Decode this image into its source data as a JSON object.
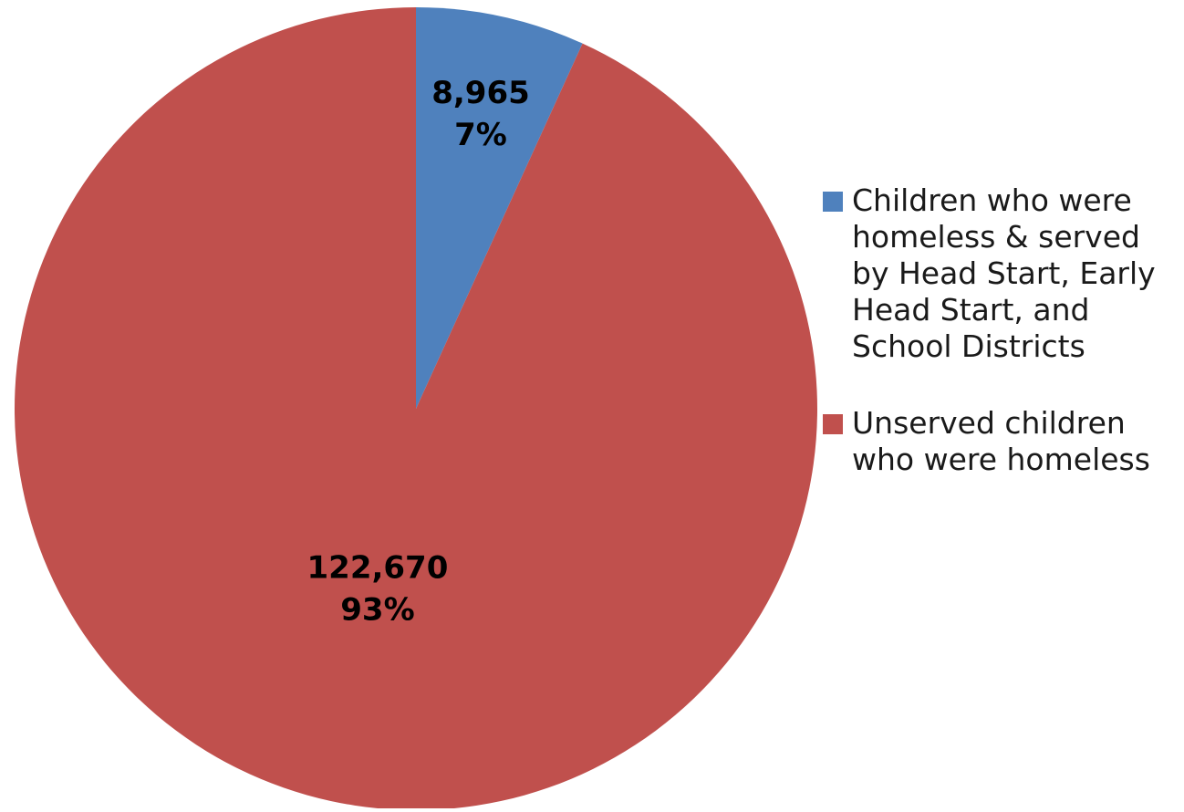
{
  "chart_data": {
    "type": "pie",
    "title": "",
    "slices": [
      {
        "name": "Children who were\nhomeless & served\nby Head Start, Early\nHead Start, and\nSchool Districts",
        "value": 8965,
        "value_label": "8,965",
        "percent_label": "7%",
        "color": "#4F81BD"
      },
      {
        "name": "Unserved children\nwho were homeless",
        "value": 122670,
        "value_label": "122,670",
        "percent_label": "93%",
        "color": "#C0504D"
      }
    ],
    "start_angle": "top (12 o'clock), clockwise",
    "legend_position": "right"
  }
}
